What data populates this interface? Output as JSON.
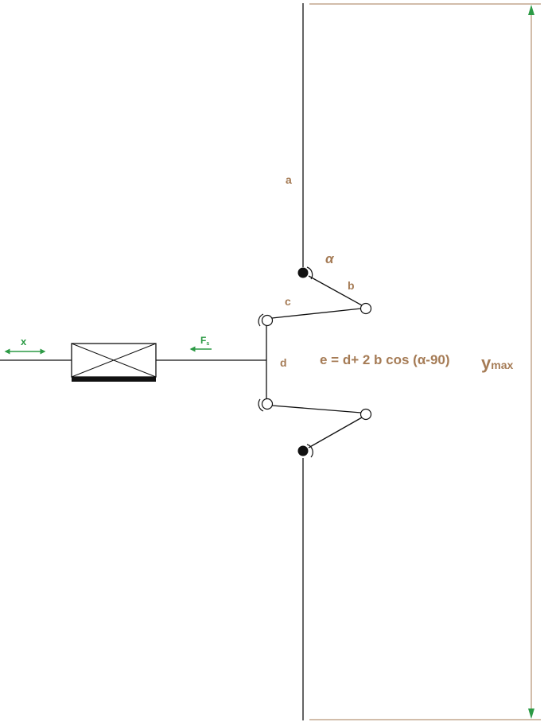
{
  "labels": {
    "a": "a",
    "b": "b",
    "c": "c",
    "d": "d",
    "alpha": "α",
    "x": "x",
    "fs_main": "F",
    "fs_sub": "s",
    "ymax_main": "y",
    "ymax_sub": "max"
  },
  "formula": "e = d+ 2 b cos (α-90)",
  "colors": {
    "line": "#111111",
    "label": "#a57b55",
    "dimension": "#a57b55",
    "arrow": "#2c9a45"
  }
}
